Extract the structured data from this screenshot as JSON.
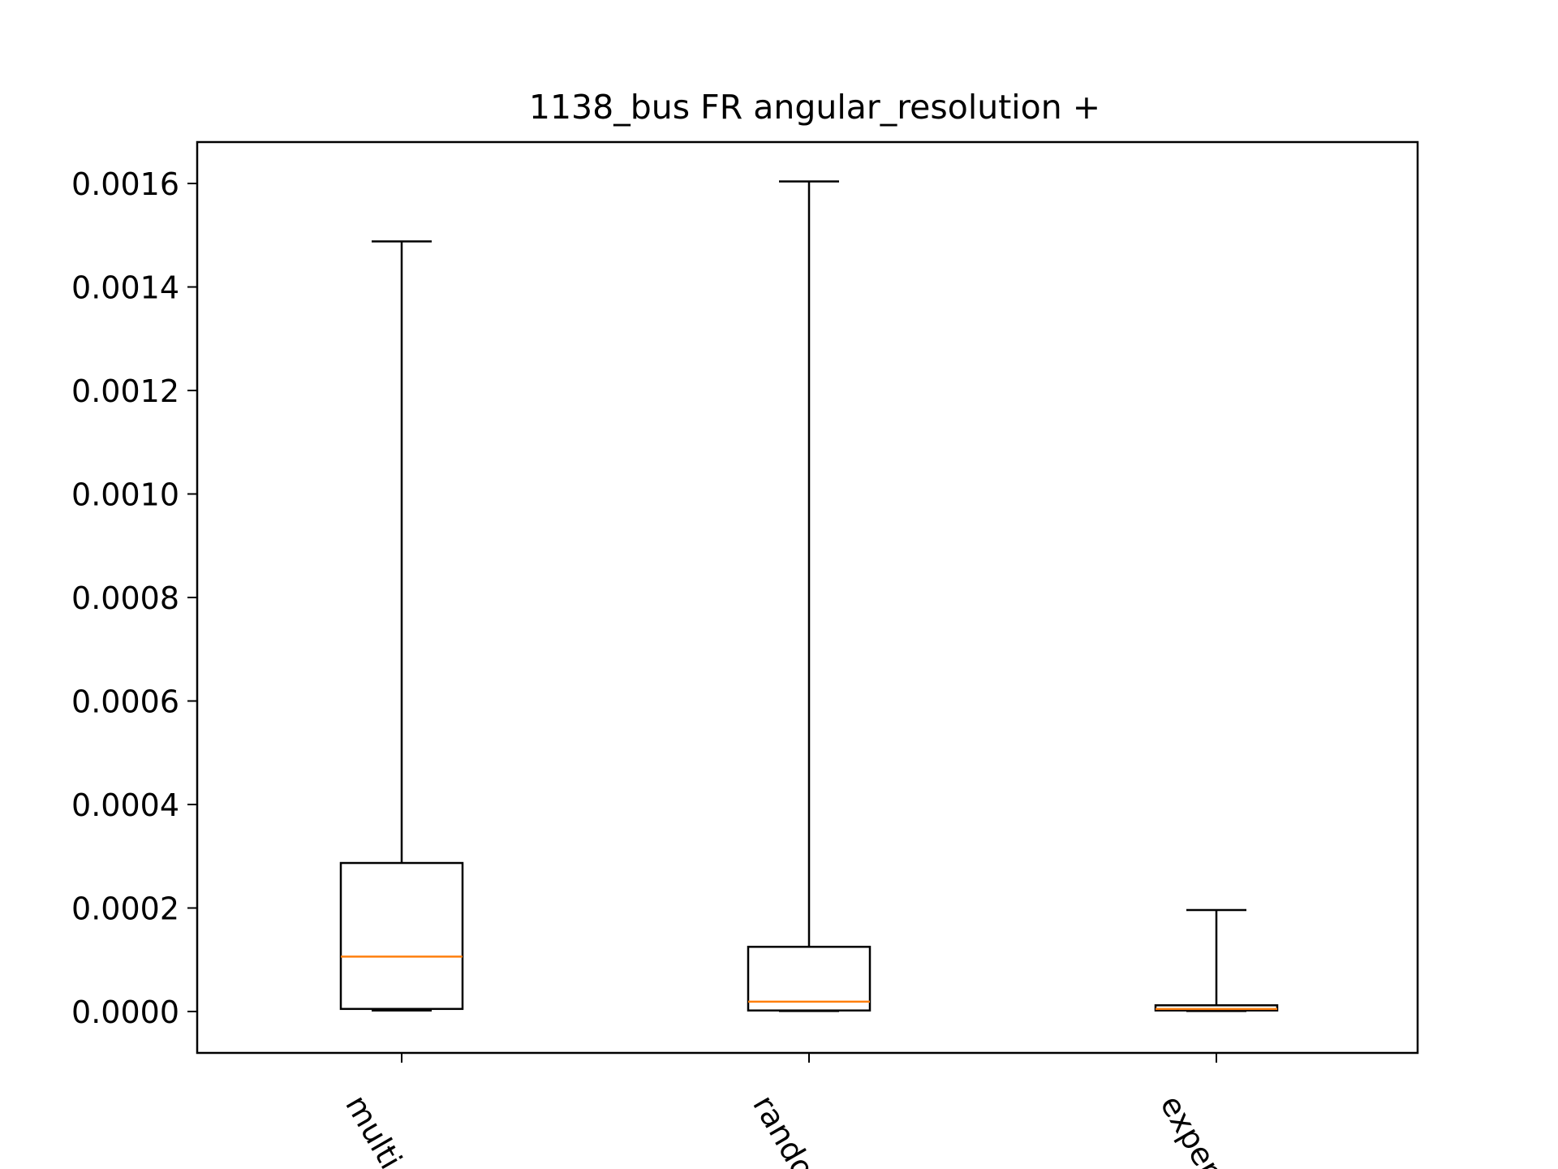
{
  "chart_data": {
    "type": "box",
    "title": "1138_bus FR angular_resolution +",
    "xlabel": "",
    "ylabel": "",
    "ylim": [
      -8e-05,
      0.00168
    ],
    "yticks": [
      0.0,
      0.0002,
      0.0004,
      0.0006,
      0.0008,
      0.001,
      0.0012,
      0.0014,
      0.0016
    ],
    "ytick_labels": [
      "0.0000",
      "0.0002",
      "0.0004",
      "0.0006",
      "0.0008",
      "0.0010",
      "0.0012",
      "0.0014",
      "0.0016"
    ],
    "categories": [
      "multi_objective",
      "random",
      "experience"
    ],
    "category_labels_visible": [
      "multi_o",
      "random",
      "experie"
    ],
    "boxes": [
      {
        "category": "multi_objective",
        "whisker_low": 2e-06,
        "q1": 5e-06,
        "median": 0.000106,
        "q3": 0.000287,
        "whisker_high": 0.001488
      },
      {
        "category": "random",
        "whisker_low": 1e-06,
        "q1": 2e-06,
        "median": 1.9e-05,
        "q3": 0.000125,
        "whisker_high": 0.001604
      },
      {
        "category": "experience",
        "whisker_low": 1e-06,
        "q1": 2e-06,
        "median": 5e-06,
        "q3": 1.2e-05,
        "whisker_high": 0.000196
      }
    ],
    "colors": {
      "box": "#000000",
      "median": "#ff7f0e"
    },
    "grid": false,
    "legend": "none"
  }
}
